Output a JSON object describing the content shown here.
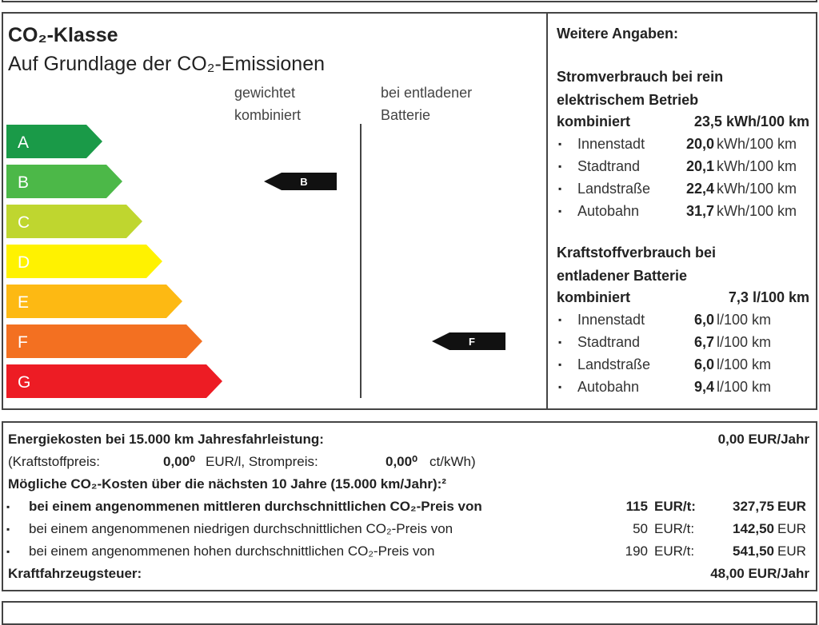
{
  "label": {
    "title": "CO₂-Klasse",
    "subtitle": "Auf Grundlage der CO₂-Emissionen",
    "columns": [
      "gewichtet kombiniert",
      "bei entladener Batterie"
    ],
    "classes": [
      {
        "letter": "A",
        "color": "#1a9a48"
      },
      {
        "letter": "B",
        "color": "#4cb848"
      },
      {
        "letter": "C",
        "color": "#bfd62f"
      },
      {
        "letter": "D",
        "color": "#fff200"
      },
      {
        "letter": "E",
        "color": "#fdb913"
      },
      {
        "letter": "F",
        "color": "#f37021"
      },
      {
        "letter": "G",
        "color": "#ed1c24"
      }
    ],
    "weighted_class": "B",
    "discharged_class": "F"
  },
  "details": {
    "heading": "Weitere Angaben:",
    "electric": {
      "heading": "Stromverbrauch bei rein elektrischem Betrieb",
      "combined_label": "kombiniert",
      "combined_value": "23,5 kWh/100 km",
      "items": [
        {
          "name": "Innenstadt",
          "value": "20,0",
          "unit": "kWh/100 km"
        },
        {
          "name": "Stadtrand",
          "value": "20,1",
          "unit": "kWh/100 km"
        },
        {
          "name": "Landstraße",
          "value": "22,4",
          "unit": "kWh/100 km"
        },
        {
          "name": "Autobahn",
          "value": "31,7",
          "unit": "kWh/100 km"
        }
      ]
    },
    "fuel": {
      "heading": "Kraftstoffverbrauch bei entladener Batterie",
      "combined_label": "kombiniert",
      "combined_value": "7,3 l/100 km",
      "items": [
        {
          "name": "Innenstadt",
          "value": "6,0",
          "unit": "l/100 km"
        },
        {
          "name": "Stadtrand",
          "value": "6,7",
          "unit": "l/100 km"
        },
        {
          "name": "Landstraße",
          "value": "6,0",
          "unit": "l/100 km"
        },
        {
          "name": "Autobahn",
          "value": "9,4",
          "unit": "l/100 km"
        }
      ]
    }
  },
  "costs": {
    "energy_label": "Energiekosten bei 15.000 km Jahresfahrleistung:",
    "energy_value": "0,00 EUR/Jahr",
    "fuel_price_label": "(Kraftstoffpreis:",
    "fuel_price": "0,00⁰",
    "fuel_price_unit": "EUR/l, Strompreis:",
    "power_price": "0,00⁰",
    "power_price_unit": "ct/kWh)",
    "co2_heading": "Mögliche CO₂-Kosten über die nächsten 10 Jahre (15.000 km/Jahr):²",
    "co2_rows": [
      {
        "text": "bei einem angenommenen mittleren durchschnittlichen CO₂-Preis von",
        "price": "115",
        "unit": "EUR/t:",
        "cost": "327,75",
        "currency": "EUR"
      },
      {
        "text": "bei einem angenommenen niedrigen durchschnittlichen CO₂-Preis von",
        "price": "50",
        "unit": "EUR/t:",
        "cost": "142,50",
        "currency": "EUR"
      },
      {
        "text": "bei einem angenommenen hohen durchschnittlichen CO₂-Preis von",
        "price": "190",
        "unit": "EUR/t:",
        "cost": "541,50",
        "currency": "EUR"
      }
    ],
    "tax_label": "Kraftfahrzeugsteuer:",
    "tax_value": "48,00 EUR/Jahr"
  }
}
